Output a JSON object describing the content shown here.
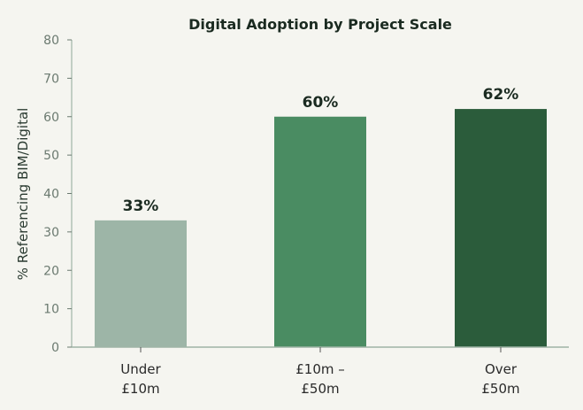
{
  "chart_data": {
    "type": "bar",
    "title": "Digital Adoption by Project Scale",
    "xlabel": "",
    "ylabel": "% Referencing BIM/Digital",
    "ylim": [
      0,
      80
    ],
    "yticks": [
      0,
      10,
      20,
      30,
      40,
      50,
      60,
      70,
      80
    ],
    "categories": [
      [
        "Under",
        "£10m"
      ],
      [
        "£10m –",
        "£50m"
      ],
      [
        "Over",
        "£50m"
      ]
    ],
    "values": [
      33,
      60,
      62
    ],
    "data_labels": [
      "33%",
      "60%",
      "62%"
    ],
    "colors": [
      "#9db5a7",
      "#4a8c62",
      "#2b5c3b"
    ],
    "grid": false
  }
}
